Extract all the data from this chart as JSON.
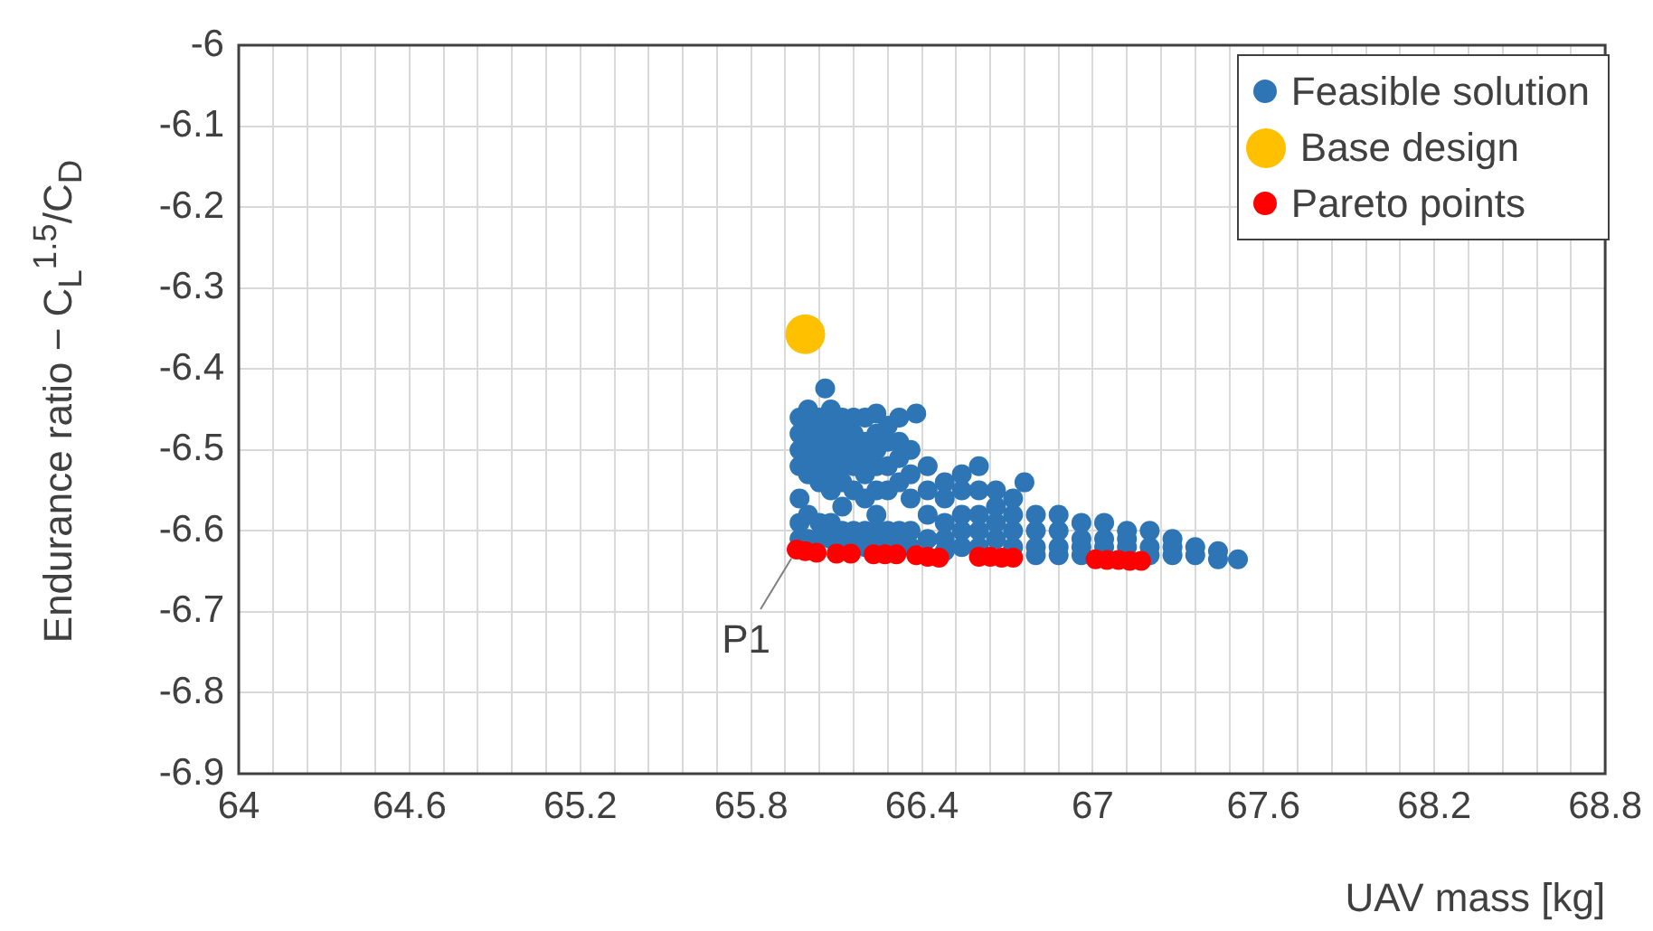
{
  "chart_data": {
    "type": "scatter",
    "xlabel": "UAV mass [kg]",
    "ylabel": "Endurance ratio  − C$_{L}$$^{1.5}$/C$_{D}$",
    "xlim": [
      64,
      68.8
    ],
    "ylim": [
      -6.9,
      -6
    ],
    "xticks": [
      64,
      {
        "value": 64.12,
        "label": null
      },
      {
        "value": 64.24,
        "label": null
      },
      {
        "value": 64.36,
        "label": null
      },
      {
        "value": 64.48,
        "label": null
      },
      64.6,
      {
        "value": 64.72,
        "label": null
      },
      {
        "value": 64.84,
        "label": null
      },
      {
        "value": 64.96,
        "label": null
      },
      {
        "value": 65.08,
        "label": null
      },
      65.2,
      {
        "value": 65.32,
        "label": null
      },
      {
        "value": 65.44,
        "label": null
      },
      {
        "value": 65.56,
        "label": null
      },
      {
        "value": 65.68,
        "label": null
      },
      65.8,
      {
        "value": 65.92,
        "label": null
      },
      {
        "value": 66.04,
        "label": null
      },
      {
        "value": 66.16,
        "label": null
      },
      {
        "value": 66.28,
        "label": null
      },
      66.4,
      {
        "value": 66.52,
        "label": null
      },
      {
        "value": 66.64,
        "label": null
      },
      {
        "value": 66.76,
        "label": null
      },
      {
        "value": 66.88,
        "label": null
      },
      67,
      {
        "value": 67.12,
        "label": null
      },
      {
        "value": 67.24,
        "label": null
      },
      {
        "value": 67.36,
        "label": null
      },
      {
        "value": 67.48,
        "label": null
      },
      67.6,
      {
        "value": 67.72,
        "label": null
      },
      {
        "value": 67.84,
        "label": null
      },
      {
        "value": 67.96,
        "label": null
      },
      {
        "value": 68.08,
        "label": null
      },
      68.2,
      {
        "value": 68.32,
        "label": null
      },
      {
        "value": 68.44,
        "label": null
      },
      {
        "value": 68.56,
        "label": null
      },
      {
        "value": 68.68,
        "label": null
      },
      68.8
    ],
    "yticks": [
      -6.9,
      -6.8,
      -6.7,
      -6.6,
      -6.5,
      -6.4,
      -6.3,
      -6.2,
      -6.1,
      -6
    ],
    "grid": true,
    "legend": "top right",
    "marker": "circle",
    "annotations": [
      {
        "text": "P1",
        "x": 65.96,
        "y": -6.623
      }
    ],
    "series": [
      {
        "name": "Feasible solution",
        "color": "#2e75b6",
        "x": [
          65.97,
          65.97,
          65.97,
          65.97,
          65.97,
          65.97,
          65.97,
          66.0,
          66.0,
          66.0,
          66.0,
          66.0,
          66.0,
          66.0,
          66.04,
          66.04,
          66.04,
          66.04,
          66.04,
          66.04,
          66.04,
          66.06,
          66.08,
          66.08,
          66.08,
          66.08,
          66.08,
          66.08,
          66.08,
          66.08,
          66.12,
          66.12,
          66.12,
          66.12,
          66.12,
          66.12,
          66.12,
          66.12,
          66.16,
          66.16,
          66.16,
          66.16,
          66.16,
          66.16,
          66.16,
          66.2,
          66.2,
          66.2,
          66.2,
          66.2,
          66.2,
          66.2,
          66.24,
          66.24,
          66.24,
          66.24,
          66.24,
          66.24,
          66.24,
          66.24,
          66.28,
          66.28,
          66.28,
          66.28,
          66.28,
          66.28,
          66.32,
          66.32,
          66.32,
          66.32,
          66.32,
          66.32,
          66.36,
          66.36,
          66.36,
          66.36,
          66.36,
          66.38,
          66.42,
          66.42,
          66.42,
          66.42,
          66.48,
          66.48,
          66.48,
          66.48,
          66.48,
          66.54,
          66.54,
          66.54,
          66.54,
          66.54,
          66.6,
          66.6,
          66.6,
          66.6,
          66.6,
          66.66,
          66.66,
          66.66,
          66.66,
          66.72,
          66.72,
          66.72,
          66.72,
          66.76,
          66.8,
          66.8,
          66.8,
          66.8,
          66.88,
          66.88,
          66.88,
          66.88,
          66.96,
          66.96,
          66.96,
          66.96,
          67.04,
          67.04,
          67.04,
          67.12,
          67.12,
          67.12,
          67.2,
          67.2,
          67.2,
          67.28,
          67.28,
          67.28,
          67.36,
          67.36,
          67.44,
          67.44,
          67.51
        ],
        "values": [
          -6.46,
          -6.48,
          -6.5,
          -6.52,
          -6.56,
          -6.59,
          -6.61,
          -6.45,
          -6.47,
          -6.49,
          -6.51,
          -6.53,
          -6.58,
          -6.61,
          -6.46,
          -6.48,
          -6.5,
          -6.52,
          -6.54,
          -6.59,
          -6.61,
          -6.424,
          -6.45,
          -6.47,
          -6.49,
          -6.51,
          -6.53,
          -6.55,
          -6.59,
          -6.61,
          -6.46,
          -6.48,
          -6.5,
          -6.52,
          -6.54,
          -6.57,
          -6.6,
          -6.62,
          -6.46,
          -6.48,
          -6.5,
          -6.52,
          -6.55,
          -6.6,
          -6.62,
          -6.46,
          -6.49,
          -6.51,
          -6.53,
          -6.56,
          -6.6,
          -6.62,
          -6.455,
          -6.48,
          -6.5,
          -6.52,
          -6.55,
          -6.58,
          -6.6,
          -6.62,
          -6.47,
          -6.49,
          -6.52,
          -6.55,
          -6.6,
          -6.62,
          -6.46,
          -6.49,
          -6.51,
          -6.54,
          -6.6,
          -6.62,
          -6.5,
          -6.53,
          -6.56,
          -6.6,
          -6.62,
          -6.455,
          -6.52,
          -6.55,
          -6.58,
          -6.61,
          -6.54,
          -6.56,
          -6.59,
          -6.61,
          -6.625,
          -6.53,
          -6.55,
          -6.58,
          -6.6,
          -6.62,
          -6.52,
          -6.55,
          -6.58,
          -6.6,
          -6.62,
          -6.55,
          -6.57,
          -6.59,
          -6.61,
          -6.56,
          -6.58,
          -6.6,
          -6.62,
          -6.54,
          -6.58,
          -6.6,
          -6.62,
          -6.63,
          -6.58,
          -6.6,
          -6.62,
          -6.63,
          -6.59,
          -6.61,
          -6.62,
          -6.63,
          -6.59,
          -6.61,
          -6.62,
          -6.6,
          -6.61,
          -6.62,
          -6.6,
          -6.62,
          -6.63,
          -6.61,
          -6.62,
          -6.63,
          -6.62,
          -6.63,
          -6.625,
          -6.635,
          -6.635
        ]
      },
      {
        "name": "Base design",
        "color": "#ffc000",
        "x": [
          65.99
        ],
        "values": [
          -6.357
        ]
      },
      {
        "name": "Pareto points",
        "color": "#ff0000",
        "x": [
          65.96,
          65.99,
          66.03,
          66.1,
          66.15,
          66.23,
          66.27,
          66.31,
          66.38,
          66.42,
          66.46,
          66.6,
          66.64,
          66.68,
          66.72,
          67.01,
          67.05,
          67.09,
          67.13,
          67.17
        ],
        "values": [
          -6.623,
          -6.625,
          -6.627,
          -6.628,
          -6.628,
          -6.629,
          -6.629,
          -6.629,
          -6.63,
          -6.632,
          -6.633,
          -6.632,
          -6.632,
          -6.633,
          -6.633,
          -6.635,
          -6.636,
          -6.636,
          -6.637,
          -6.637
        ]
      }
    ]
  }
}
